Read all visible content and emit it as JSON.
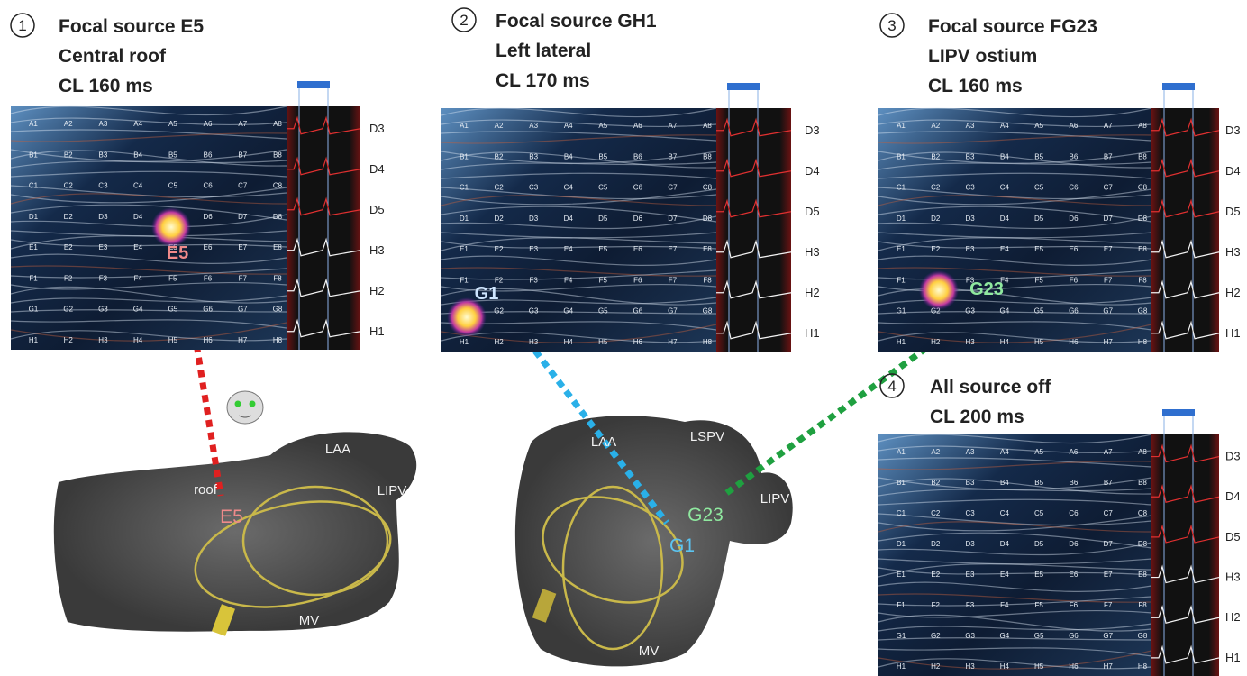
{
  "panels": [
    {
      "number": "1",
      "lines": [
        "Focal source E5",
        "Central roof",
        "CL 160 ms"
      ],
      "source_label": "E5"
    },
    {
      "number": "2",
      "lines": [
        "Focal source GH1",
        "Left lateral",
        "CL 170 ms"
      ],
      "source_label": "G1"
    },
    {
      "number": "3",
      "lines": [
        "Focal source FG23",
        "LIPV ostium",
        "CL 160 ms"
      ],
      "source_label": "G23"
    },
    {
      "number": "4",
      "lines": [
        "All source off",
        "CL 200 ms"
      ]
    }
  ],
  "channels": [
    "D3",
    "D4",
    "D5",
    "H3",
    "H2",
    "H1"
  ],
  "electrodes": [
    [
      "A1",
      "A2",
      "A3",
      "A4",
      "A5",
      "A6",
      "A7",
      "A8"
    ],
    [
      "B1",
      "B2",
      "B3",
      "B4",
      "B5",
      "B6",
      "B7",
      "B8"
    ],
    [
      "C1",
      "C2",
      "C3",
      "C4",
      "C5",
      "C6",
      "C7",
      "C8"
    ],
    [
      "D1",
      "D2",
      "D3",
      "D4",
      "D5",
      "D6",
      "D7",
      "D8"
    ],
    [
      "E1",
      "E2",
      "E3",
      "E4",
      "E5",
      "E6",
      "E7",
      "E8"
    ],
    [
      "F1",
      "F2",
      "F3",
      "F4",
      "F5",
      "F6",
      "F7",
      "F8"
    ],
    [
      "G1",
      "G2",
      "G3",
      "G4",
      "G5",
      "G6",
      "G7",
      "G8"
    ],
    [
      "H1",
      "H2",
      "H3",
      "H4",
      "H5",
      "H6",
      "H7",
      "H8"
    ]
  ],
  "models": [
    {
      "labels": [
        "roof",
        "E5",
        "LAA",
        "LIPV",
        "MV"
      ]
    },
    {
      "labels": [
        "LAA",
        "LSPV",
        "LIPV",
        "G23",
        "G1",
        "MV"
      ]
    }
  ]
}
